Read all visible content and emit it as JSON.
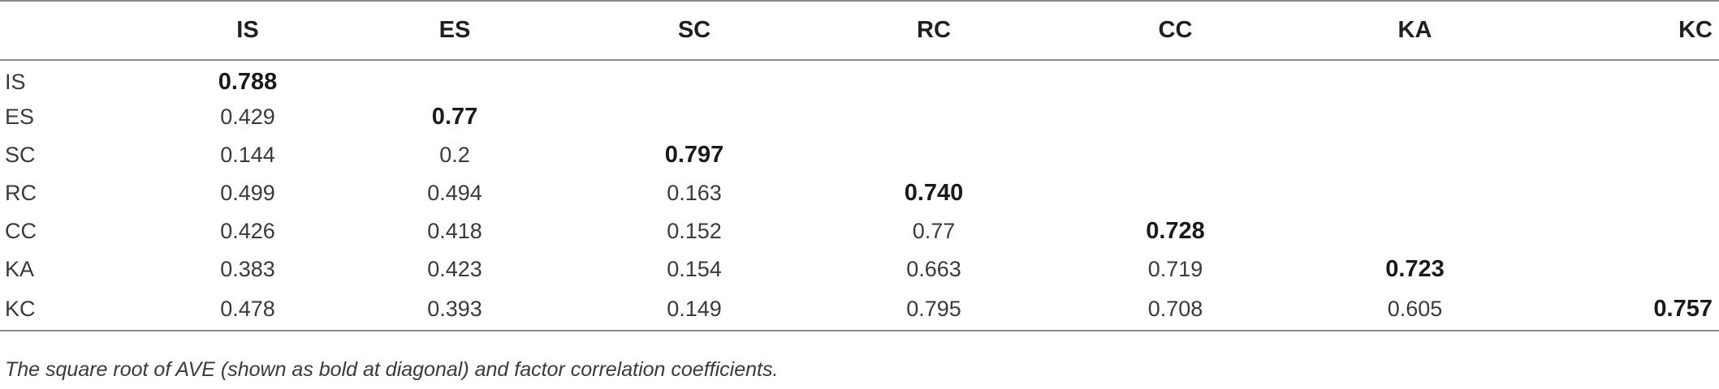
{
  "table": {
    "column_headers": [
      "",
      "IS",
      "ES",
      "SC",
      "RC",
      "CC",
      "KA",
      "KC"
    ],
    "rows": [
      {
        "label": "IS",
        "cells": [
          "0.788",
          "",
          "",
          "",
          "",
          "",
          ""
        ]
      },
      {
        "label": "ES",
        "cells": [
          "0.429",
          "0.77",
          "",
          "",
          "",
          "",
          ""
        ]
      },
      {
        "label": "SC",
        "cells": [
          "0.144",
          "0.2",
          "0.797",
          "",
          "",
          "",
          ""
        ]
      },
      {
        "label": "RC",
        "cells": [
          "0.499",
          "0.494",
          "0.163",
          "0.740",
          "",
          "",
          ""
        ]
      },
      {
        "label": "CC",
        "cells": [
          "0.426",
          "0.418",
          "0.152",
          "0.77",
          "0.728",
          "",
          ""
        ]
      },
      {
        "label": "KA",
        "cells": [
          "0.383",
          "0.423",
          "0.154",
          "0.663",
          "0.719",
          "0.723",
          ""
        ]
      },
      {
        "label": "KC",
        "cells": [
          "0.478",
          "0.393",
          "0.149",
          "0.795",
          "0.708",
          "0.605",
          "0.757"
        ]
      }
    ]
  },
  "footnote": "The square root of AVE (shown as bold at diagonal) and factor correlation coefficients."
}
